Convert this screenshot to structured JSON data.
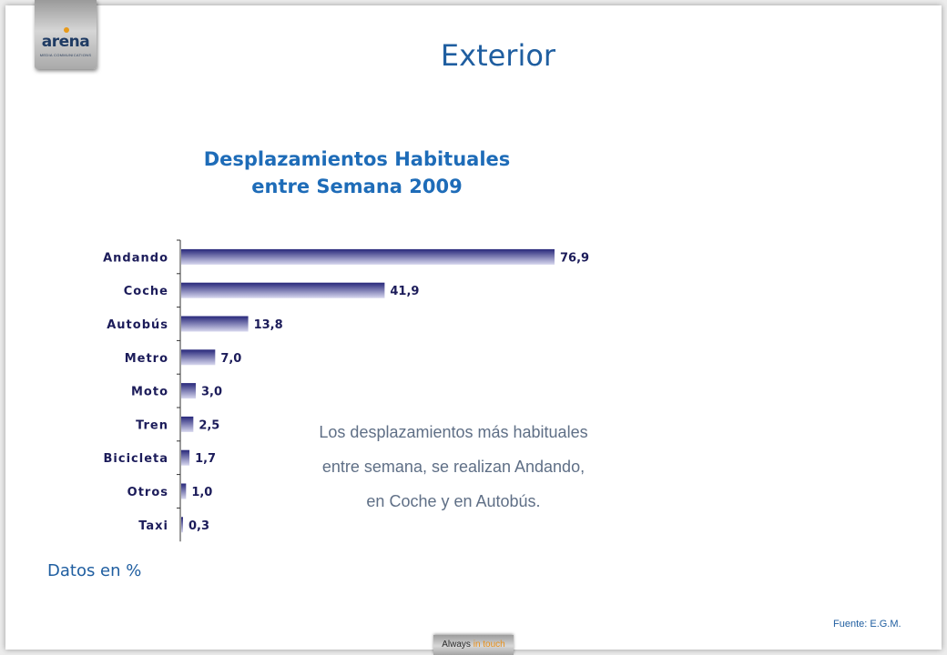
{
  "brand": {
    "logo_text": "arena",
    "logo_subtext": "MEDIA COMMUNICATIONS",
    "tagline_part1": "Always",
    "tagline_part2": "in touch"
  },
  "page": {
    "title": "Exterior",
    "note_lines": [
      "Los desplazamientos más habituales",
      "entre semana, se realizan Andando,",
      "en Coche y en Autobús."
    ],
    "units_label": "Datos en %",
    "source": "Fuente: E.G.M."
  },
  "colors": {
    "title": "#1f5ea0",
    "chart_title": "#1e6cb8",
    "bar_dark": "#27277a",
    "bar_light": "#d8d8ef",
    "label": "#1c1c5a"
  },
  "chart_data": {
    "type": "bar",
    "orientation": "horizontal",
    "title_lines": [
      "Desplazamientos Habituales",
      "entre Semana 2009"
    ],
    "categories": [
      "Andando",
      "Coche",
      "Autobús",
      "Metro",
      "Moto",
      "Tren",
      "Bicicleta",
      "Otros",
      "Taxi"
    ],
    "values": [
      76.9,
      41.9,
      13.8,
      7.0,
      3.0,
      2.5,
      1.7,
      1.0,
      0.3
    ],
    "value_labels": [
      "76,9",
      "41,9",
      "13,8",
      "7,0",
      "3,0",
      "2,5",
      "1,7",
      "1,0",
      "0,3"
    ],
    "xlabel": "",
    "ylabel": "",
    "xlim": [
      0,
      76.9
    ],
    "grid": false,
    "legend": "none"
  }
}
